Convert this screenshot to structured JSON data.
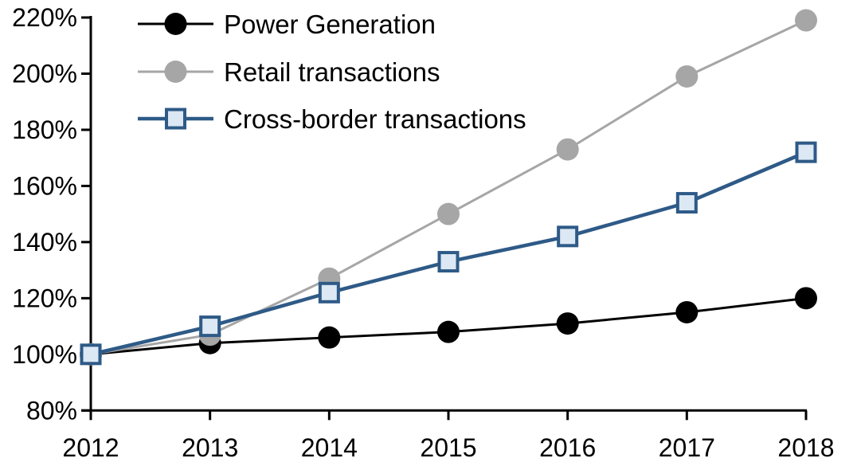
{
  "chart_data": {
    "type": "line",
    "title": "",
    "categories": [
      "2012",
      "2013",
      "2014",
      "2015",
      "2016",
      "2017",
      "2018"
    ],
    "series": [
      {
        "name": "Power Generation",
        "values": [
          100,
          104,
          106,
          108,
          111,
          115,
          120
        ],
        "color": "#000000",
        "marker": "circle",
        "marker_fill": "#000000",
        "line_width": 3
      },
      {
        "name": "Retail transactions",
        "values": [
          100,
          107,
          127,
          150,
          173,
          199,
          219
        ],
        "color": "#A6A6A6",
        "marker": "circle",
        "marker_fill": "#A6A6A6",
        "line_width": 3
      },
      {
        "name": "Cross-border transactions",
        "values": [
          100,
          110,
          122,
          133,
          142,
          154,
          172
        ],
        "color": "#2E5A87",
        "marker": "square",
        "marker_fill": "#DCE8F4",
        "line_width": 4.5
      }
    ],
    "xlabel": "",
    "ylabel": "",
    "ylim": [
      80,
      220
    ],
    "ytick_step": 20,
    "ytick_suffix": "%",
    "grid": false,
    "legend_position": "top-left",
    "axis_color": "#000000"
  }
}
